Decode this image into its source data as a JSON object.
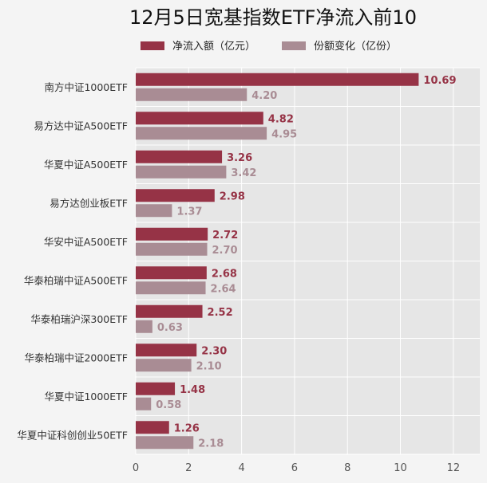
{
  "chart_data": {
    "type": "bar",
    "orientation": "horizontal",
    "title": "12月5日宽基指数ETF净流入前10",
    "categories": [
      "南方中证1000ETF",
      "易方达中证A500ETF",
      "华夏中证A500ETF",
      "易方达创业板ETF",
      "华安中证A500ETF",
      "华泰柏瑞中证A500ETF",
      "华泰柏瑞沪深300ETF",
      "华泰柏瑞中证2000ETF",
      "华夏中证1000ETF",
      "华夏中证科创创业50ETF"
    ],
    "series": [
      {
        "name": "净流入额（亿元）",
        "color": "#963346",
        "values": [
          10.69,
          4.82,
          3.26,
          2.98,
          2.72,
          2.68,
          2.52,
          2.3,
          1.48,
          1.26
        ],
        "labels": [
          "10.69",
          "4.82",
          "3.26",
          "2.98",
          "2.72",
          "2.68",
          "2.52",
          "2.30",
          "1.48",
          "1.26"
        ]
      },
      {
        "name": "份额变化（亿份）",
        "color": "#a98c94",
        "values": [
          4.2,
          4.95,
          3.42,
          1.37,
          2.7,
          2.64,
          0.63,
          2.1,
          0.58,
          2.18
        ],
        "labels": [
          "4.20",
          "4.95",
          "3.42",
          "1.37",
          "2.70",
          "2.64",
          "0.63",
          "2.10",
          "0.58",
          "2.18"
        ]
      }
    ],
    "xlim": [
      0,
      13
    ],
    "xticks": [
      0,
      2,
      4,
      6,
      8,
      10,
      12
    ],
    "grid": true,
    "legend_position": "top-center"
  }
}
